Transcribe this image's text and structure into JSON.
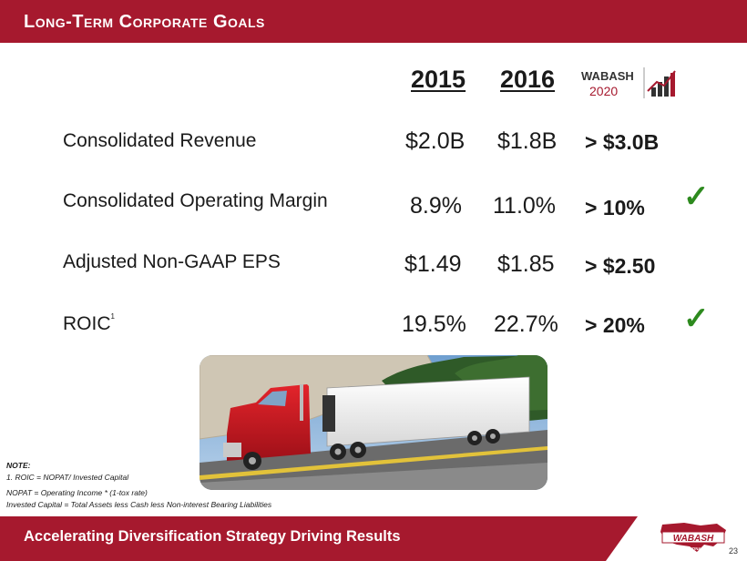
{
  "header": {
    "title": "Long-Term Corporate Goals"
  },
  "columns": {
    "year1": "2015",
    "year2": "2016"
  },
  "logo_2020": {
    "brand": "WABASH",
    "year": "2020"
  },
  "rows": [
    {
      "label": "Consolidated Revenue",
      "v2015": "$2.0B",
      "v2016": "$1.8B",
      "goal": "> $3.0B",
      "achieved": false
    },
    {
      "label": "Consolidated Operating Margin",
      "v2015": "8.9%",
      "v2016": "11.0%",
      "goal": "> 10%",
      "achieved": true
    },
    {
      "label": "Adjusted Non-GAAP EPS",
      "v2015": "$1.49",
      "v2016": "$1.85",
      "goal": "> $2.50",
      "achieved": false
    },
    {
      "label": "ROIC",
      "label_sup": "1",
      "v2015": "19.5%",
      "v2016": "22.7%",
      "goal": "> 20%",
      "achieved": true
    }
  ],
  "check_glyph": "✓",
  "notes": {
    "title": "NOTE:",
    "line1": "1. ROIC = NOPAT/ Invested Capital",
    "line2": "NOPAT = Operating Income * (1-tox rate)",
    "line3": "Invested Capital = Total Assets less Cash less Non-interest Bearing Liabilities"
  },
  "footer": {
    "tagline": "Accelerating Diversification Strategy Driving Results",
    "page_number": "23",
    "logo_text": "WABASH",
    "logo_subtext": "NATIONAL"
  },
  "colors": {
    "brand_red": "#a6192e",
    "check_green": "#2d8a1e"
  }
}
